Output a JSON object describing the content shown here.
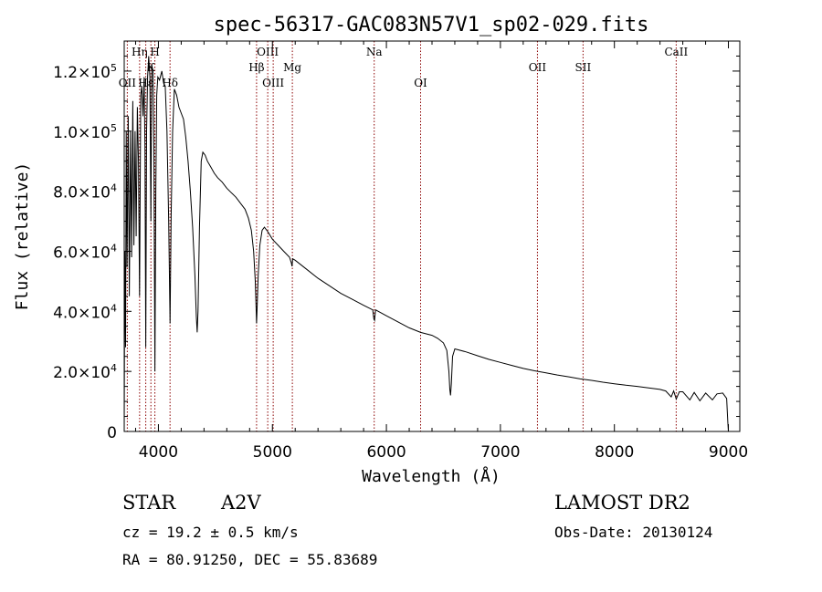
{
  "chart_data": {
    "type": "line",
    "title": "spec-56317-GAC083N57V1_sp02-029.fits",
    "xlabel": "Wavelength (Å)",
    "ylabel": "Flux (relative)",
    "xlim": [
      3700,
      9100
    ],
    "ylim": [
      0,
      130000
    ],
    "x_ticks": [
      4000,
      5000,
      6000,
      7000,
      8000,
      9000
    ],
    "x_tick_labels": [
      "4000",
      "5000",
      "6000",
      "7000",
      "8000",
      "9000"
    ],
    "y_ticks": [
      {
        "value": 0,
        "mant": "0",
        "exp": ""
      },
      {
        "value": 20000,
        "mant": "2.0×10",
        "exp": "4"
      },
      {
        "value": 40000,
        "mant": "4.0×10",
        "exp": "4"
      },
      {
        "value": 60000,
        "mant": "6.0×10",
        "exp": "4"
      },
      {
        "value": 80000,
        "mant": "8.0×10",
        "exp": "4"
      },
      {
        "value": 100000,
        "mant": "1.0×10",
        "exp": "5"
      },
      {
        "value": 120000,
        "mant": "1.2×10",
        "exp": "5"
      }
    ],
    "grid": false,
    "line_color": "#000000",
    "marker_color": "#8b0000",
    "spectral_lines": [
      {
        "label": "OII",
        "wavelength": 3727,
        "row": 3
      },
      {
        "label": "Hη",
        "wavelength": 3835,
        "row": 1
      },
      {
        "label": "Hε",
        "wavelength": 3889,
        "row": 3
      },
      {
        "label": "K",
        "wavelength": 3934,
        "row": 2
      },
      {
        "label": "H",
        "wavelength": 3969,
        "row": 1
      },
      {
        "label": "Hδ",
        "wavelength": 4102,
        "row": 3
      },
      {
        "label": "Hβ",
        "wavelength": 4861,
        "row": 2
      },
      {
        "label": "OIII",
        "wavelength": 4959,
        "row": 1
      },
      {
        "label": "OIII",
        "wavelength": 5007,
        "row": 3
      },
      {
        "label": "Mg",
        "wavelength": 5175,
        "row": 2
      },
      {
        "label": "Na",
        "wavelength": 5893,
        "row": 1
      },
      {
        "label": "OI",
        "wavelength": 6300,
        "row": 3
      },
      {
        "label": "OII",
        "wavelength": 7325,
        "row": 2
      },
      {
        "label": "SII",
        "wavelength": 7725,
        "row": 2
      },
      {
        "label": "CaII",
        "wavelength": 8542,
        "row": 1
      }
    ],
    "series": [
      {
        "points": [
          [
            3700,
            0
          ],
          [
            3705,
            60000
          ],
          [
            3712,
            28000
          ],
          [
            3718,
            100000
          ],
          [
            3725,
            55000
          ],
          [
            3735,
            105000
          ],
          [
            3745,
            45000
          ],
          [
            3755,
            100000
          ],
          [
            3765,
            58000
          ],
          [
            3775,
            110000
          ],
          [
            3785,
            62000
          ],
          [
            3795,
            100000
          ],
          [
            3805,
            65000
          ],
          [
            3815,
            108000
          ],
          [
            3825,
            90000
          ],
          [
            3835,
            45000
          ],
          [
            3845,
            112000
          ],
          [
            3855,
            115000
          ],
          [
            3865,
            105000
          ],
          [
            3875,
            118000
          ],
          [
            3882,
            95000
          ],
          [
            3889,
            28000
          ],
          [
            3896,
            100000
          ],
          [
            3905,
            118000
          ],
          [
            3915,
            125000
          ],
          [
            3925,
            118000
          ],
          [
            3934,
            70000
          ],
          [
            3942,
            122000
          ],
          [
            3952,
            120000
          ],
          [
            3960,
            95000
          ],
          [
            3969,
            20000
          ],
          [
            3977,
            80000
          ],
          [
            3985,
            112000
          ],
          [
            3995,
            118000
          ],
          [
            4010,
            117000
          ],
          [
            4030,
            120000
          ],
          [
            4045,
            116000
          ],
          [
            4060,
            115000
          ],
          [
            4075,
            100000
          ],
          [
            4090,
            70000
          ],
          [
            4102,
            36000
          ],
          [
            4112,
            72000
          ],
          [
            4125,
            100000
          ],
          [
            4140,
            114000
          ],
          [
            4160,
            112000
          ],
          [
            4180,
            108000
          ],
          [
            4200,
            106000
          ],
          [
            4220,
            104000
          ],
          [
            4240,
            98000
          ],
          [
            4260,
            90000
          ],
          [
            4280,
            80000
          ],
          [
            4300,
            68000
          ],
          [
            4320,
            52000
          ],
          [
            4333,
            38000
          ],
          [
            4340,
            33000
          ],
          [
            4347,
            40000
          ],
          [
            4360,
            68000
          ],
          [
            4375,
            90000
          ],
          [
            4390,
            93000
          ],
          [
            4410,
            92000
          ],
          [
            4430,
            90000
          ],
          [
            4460,
            88000
          ],
          [
            4490,
            86000
          ],
          [
            4520,
            84500
          ],
          [
            4560,
            83000
          ],
          [
            4600,
            81000
          ],
          [
            4640,
            79500
          ],
          [
            4680,
            78000
          ],
          [
            4720,
            76000
          ],
          [
            4760,
            74000
          ],
          [
            4790,
            71000
          ],
          [
            4815,
            67000
          ],
          [
            4835,
            60000
          ],
          [
            4850,
            50000
          ],
          [
            4858,
            40000
          ],
          [
            4861,
            36000
          ],
          [
            4865,
            40000
          ],
          [
            4875,
            52000
          ],
          [
            4890,
            62000
          ],
          [
            4910,
            67000
          ],
          [
            4930,
            68000
          ],
          [
            4960,
            66500
          ],
          [
            5000,
            64000
          ],
          [
            5050,
            62000
          ],
          [
            5100,
            60000
          ],
          [
            5150,
            58000
          ],
          [
            5167,
            56000
          ],
          [
            5172,
            55000
          ],
          [
            5178,
            57500
          ],
          [
            5200,
            57000
          ],
          [
            5300,
            54000
          ],
          [
            5400,
            51000
          ],
          [
            5500,
            48500
          ],
          [
            5600,
            46000
          ],
          [
            5700,
            44000
          ],
          [
            5800,
            42000
          ],
          [
            5880,
            40500
          ],
          [
            5890,
            37500
          ],
          [
            5896,
            37000
          ],
          [
            5905,
            40500
          ],
          [
            6000,
            38500
          ],
          [
            6100,
            36500
          ],
          [
            6200,
            34500
          ],
          [
            6300,
            33000
          ],
          [
            6400,
            32000
          ],
          [
            6450,
            31000
          ],
          [
            6500,
            29500
          ],
          [
            6530,
            27000
          ],
          [
            6548,
            20000
          ],
          [
            6556,
            14000
          ],
          [
            6563,
            12000
          ],
          [
            6570,
            16000
          ],
          [
            6580,
            25000
          ],
          [
            6600,
            27500
          ],
          [
            6700,
            26500
          ],
          [
            6800,
            25200
          ],
          [
            6900,
            24000
          ],
          [
            7000,
            23000
          ],
          [
            7100,
            22000
          ],
          [
            7200,
            21000
          ],
          [
            7300,
            20200
          ],
          [
            7400,
            19500
          ],
          [
            7500,
            18800
          ],
          [
            7600,
            18200
          ],
          [
            7700,
            17500
          ],
          [
            7800,
            17000
          ],
          [
            7900,
            16400
          ],
          [
            8000,
            15900
          ],
          [
            8100,
            15400
          ],
          [
            8200,
            15000
          ],
          [
            8300,
            14500
          ],
          [
            8400,
            14000
          ],
          [
            8450,
            13500
          ],
          [
            8498,
            11500
          ],
          [
            8520,
            13500
          ],
          [
            8542,
            10800
          ],
          [
            8570,
            13200
          ],
          [
            8600,
            13200
          ],
          [
            8662,
            10500
          ],
          [
            8700,
            13000
          ],
          [
            8750,
            10200
          ],
          [
            8800,
            12800
          ],
          [
            8860,
            10500
          ],
          [
            8900,
            12500
          ],
          [
            8950,
            12800
          ],
          [
            8985,
            11000
          ],
          [
            8995,
            3000
          ],
          [
            9000,
            0
          ]
        ]
      }
    ]
  },
  "info": {
    "object_type": "STAR",
    "subclass": "A2V",
    "survey": "LAMOST DR2",
    "cz": "cz = 19.2 ± 0.5 km/s",
    "obs_date": "Obs-Date: 20130124",
    "coords": "RA =  80.91250, DEC =  55.83689"
  }
}
